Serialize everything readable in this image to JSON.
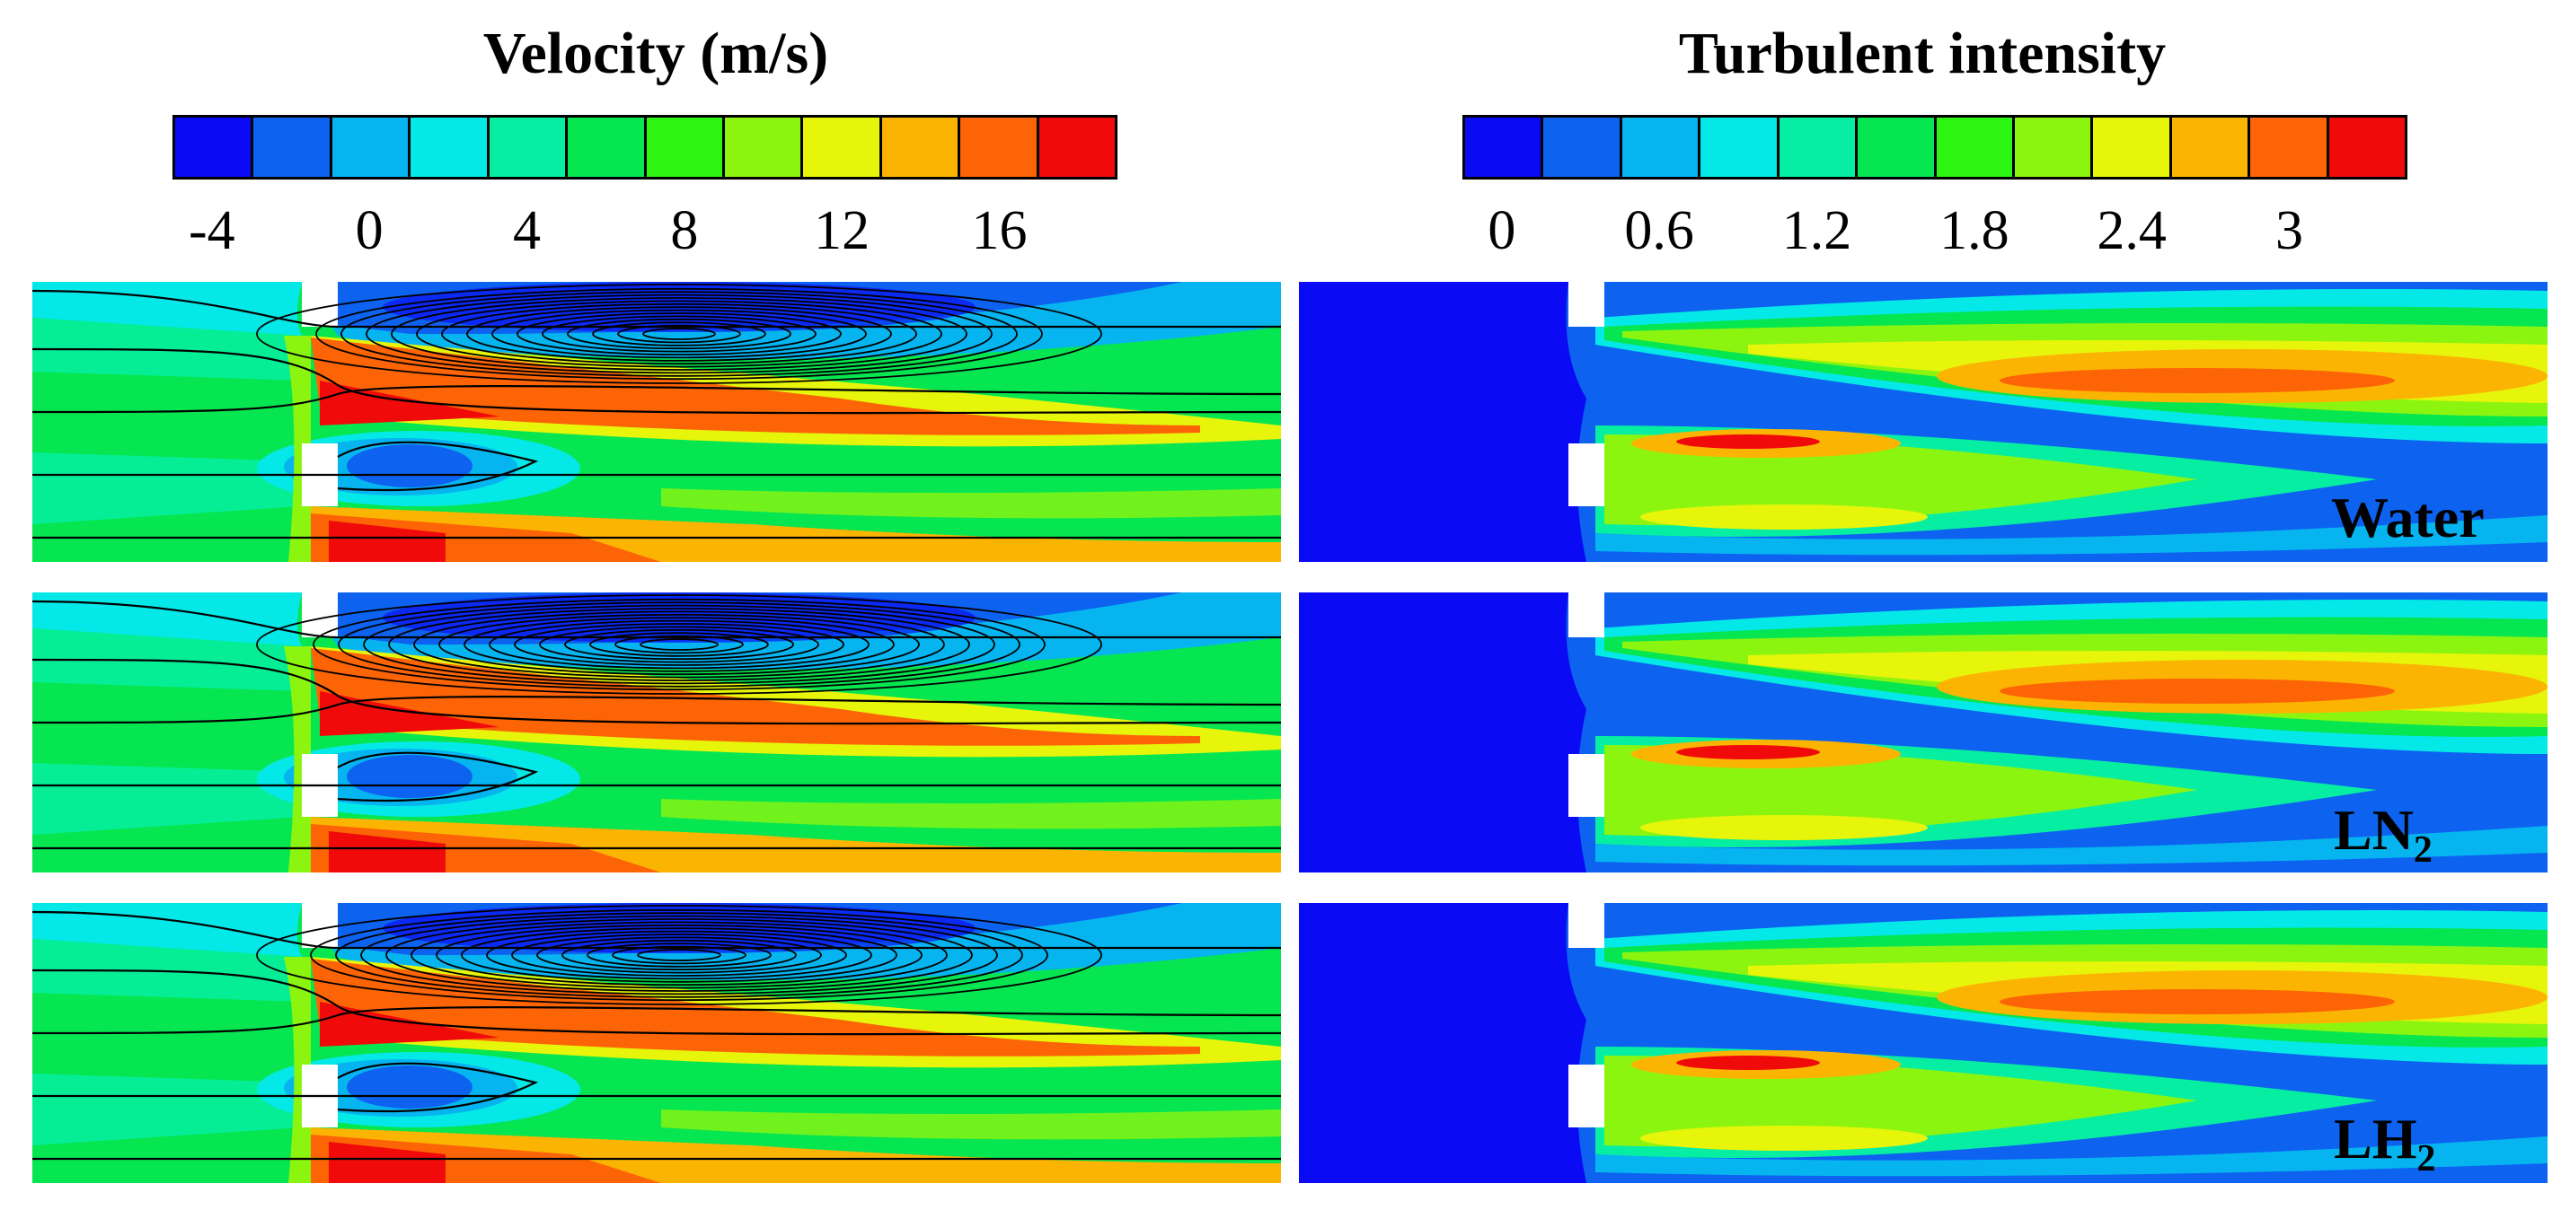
{
  "velocity": {
    "title": "Velocity (m/s)",
    "colors": [
      "#0a0af5",
      "#0d62f0",
      "#06b4f0",
      "#05e8e8",
      "#06eea2",
      "#06e650",
      "#2cf512",
      "#8cf510",
      "#e6f50a",
      "#fcb402",
      "#fc6406",
      "#f00a0a"
    ],
    "ticks": [
      "-4",
      "0",
      "4",
      "8",
      "12",
      "16"
    ]
  },
  "turbulence": {
    "title": "Turbulent intensity",
    "colors": [
      "#0a0af5",
      "#0d62f0",
      "#06b4f0",
      "#05e8e8",
      "#06eea2",
      "#06e650",
      "#2cf512",
      "#8cf510",
      "#e6f50a",
      "#fcb402",
      "#fc6406",
      "#f00a0a"
    ],
    "ticks": [
      "0",
      "0.6",
      "1.2",
      "1.8",
      "2.4",
      "3"
    ]
  },
  "cases": [
    {
      "label": "Water",
      "sub": ""
    },
    {
      "label": "LN",
      "sub": "2"
    },
    {
      "label": "LH",
      "sub": "2"
    }
  ]
}
